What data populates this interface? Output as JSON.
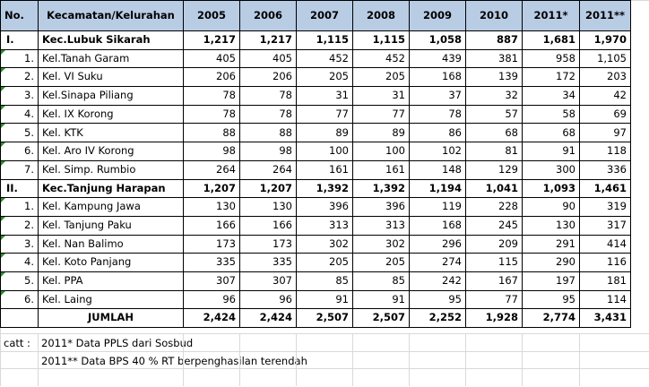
{
  "headers": [
    "No.",
    "Kecamatan/Kelurahan",
    "2005",
    "2006",
    "2007",
    "2008",
    "2009",
    "2010",
    "2011*",
    "2011**"
  ],
  "rows": [
    {
      "type": "group",
      "no": "I.",
      "name": "Kec.Lubuk Sikarah",
      "values": [
        "1,217",
        "1,217",
        "1,115",
        "1,115",
        "1,058",
        "887",
        "1,681",
        "1,970"
      ]
    },
    {
      "type": "item",
      "no": "1.",
      "name": "Kel.Tanah Garam",
      "values": [
        "405",
        "405",
        "452",
        "452",
        "439",
        "381",
        "958",
        "1,105"
      ]
    },
    {
      "type": "item",
      "no": "2.",
      "name": "Kel. VI Suku",
      "values": [
        "206",
        "206",
        "205",
        "205",
        "168",
        "139",
        "172",
        "203"
      ]
    },
    {
      "type": "item",
      "no": "3.",
      "name": "Kel.Sinapa Piliang",
      "values": [
        "78",
        "78",
        "31",
        "31",
        "37",
        "32",
        "34",
        "42"
      ]
    },
    {
      "type": "item",
      "no": "4.",
      "name": "Kel. IX Korong",
      "values": [
        "78",
        "78",
        "77",
        "77",
        "78",
        "57",
        "58",
        "69"
      ]
    },
    {
      "type": "item",
      "no": "5.",
      "name": "Kel. KTK",
      "values": [
        "88",
        "88",
        "89",
        "89",
        "86",
        "68",
        "68",
        "97"
      ]
    },
    {
      "type": "item",
      "no": "6.",
      "name": "Kel. Aro IV Korong",
      "values": [
        "98",
        "98",
        "100",
        "100",
        "102",
        "81",
        "91",
        "118"
      ]
    },
    {
      "type": "item",
      "no": "7.",
      "name": "Kel. Simp. Rumbio",
      "values": [
        "264",
        "264",
        "161",
        "161",
        "148",
        "129",
        "300",
        "336"
      ]
    },
    {
      "type": "group",
      "no": "II.",
      "name": "Kec.Tanjung Harapan",
      "values": [
        "1,207",
        "1,207",
        "1,392",
        "1,392",
        "1,194",
        "1,041",
        "1,093",
        "1,461"
      ]
    },
    {
      "type": "item",
      "no": "1.",
      "name": "Kel. Kampung Jawa",
      "values": [
        "130",
        "130",
        "396",
        "396",
        "119",
        "228",
        "90",
        "319"
      ]
    },
    {
      "type": "item",
      "no": "2.",
      "name": "Kel. Tanjung Paku",
      "values": [
        "166",
        "166",
        "313",
        "313",
        "168",
        "245",
        "130",
        "317"
      ]
    },
    {
      "type": "item",
      "no": "3.",
      "name": "Kel. Nan Balimo",
      "values": [
        "173",
        "173",
        "302",
        "302",
        "296",
        "209",
        "291",
        "414"
      ]
    },
    {
      "type": "item",
      "no": "4.",
      "name": "Kel. Koto Panjang",
      "values": [
        "335",
        "335",
        "205",
        "205",
        "274",
        "115",
        "290",
        "116"
      ]
    },
    {
      "type": "item",
      "no": "5.",
      "name": "Kel. PPA",
      "values": [
        "307",
        "307",
        "85",
        "85",
        "242",
        "167",
        "197",
        "181"
      ]
    },
    {
      "type": "item",
      "no": "6.",
      "name": "Kel. Laing",
      "values": [
        "96",
        "96",
        "91",
        "91",
        "95",
        "77",
        "95",
        "114"
      ]
    },
    {
      "type": "total",
      "no": "",
      "name": "JUMLAH",
      "values": [
        "2,424",
        "2,424",
        "2,507",
        "2,507",
        "2,252",
        "1,928",
        "2,774",
        "3,431"
      ]
    }
  ],
  "notes": {
    "label": "catt :",
    "line1": "2011* Data PPLS dari Sosbud",
    "line2": "2011** Data BPS 40 % RT berpenghasilan terendah"
  }
}
